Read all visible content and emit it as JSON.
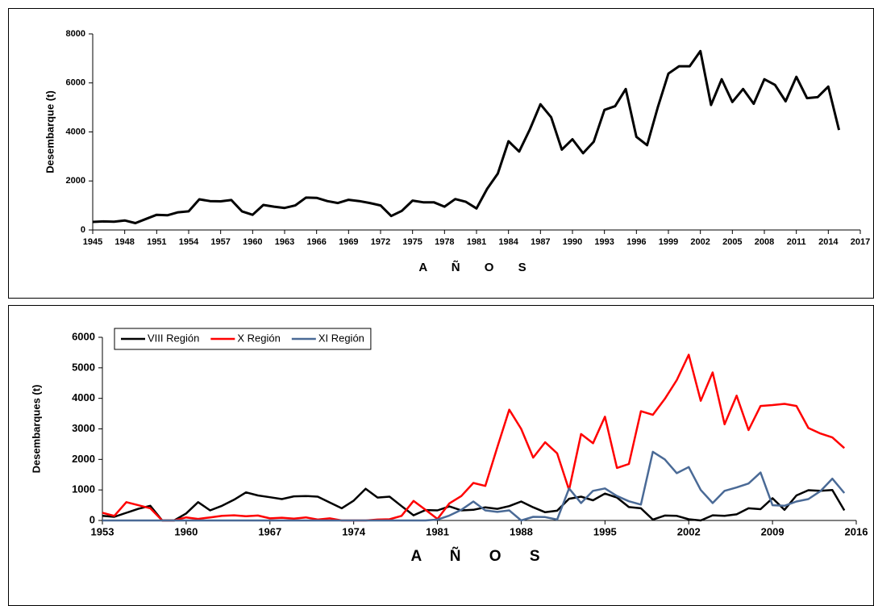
{
  "chart_data": [
    {
      "type": "line",
      "y_label": "Desembarque (t)",
      "x_label": "A Ñ O S",
      "x": [
        1945,
        1946,
        1947,
        1948,
        1949,
        1950,
        1951,
        1952,
        1953,
        1954,
        1955,
        1956,
        1957,
        1958,
        1959,
        1960,
        1961,
        1962,
        1963,
        1964,
        1965,
        1966,
        1967,
        1968,
        1969,
        1970,
        1971,
        1972,
        1973,
        1974,
        1975,
        1976,
        1977,
        1978,
        1979,
        1980,
        1981,
        1982,
        1983,
        1984,
        1985,
        1986,
        1987,
        1988,
        1989,
        1990,
        1991,
        1992,
        1993,
        1994,
        1995,
        1996,
        1997,
        1998,
        1999,
        2000,
        2001,
        2002,
        2003,
        2004,
        2005,
        2006,
        2007,
        2008,
        2009,
        2010,
        2011,
        2012,
        2013,
        2014,
        2015
      ],
      "values": [
        330,
        350,
        340,
        390,
        280,
        450,
        620,
        600,
        720,
        760,
        1250,
        1180,
        1170,
        1220,
        760,
        620,
        1020,
        950,
        900,
        1000,
        1320,
        1310,
        1180,
        1100,
        1230,
        1180,
        1100,
        1000,
        570,
        780,
        1200,
        1130,
        1130,
        950,
        1260,
        1150,
        880,
        1680,
        2300,
        3620,
        3200,
        4100,
        5130,
        4600,
        3280,
        3700,
        3130,
        3600,
        4900,
        5050,
        5750,
        3800,
        3460,
        5000,
        6380,
        6680,
        6680,
        7300,
        5100,
        6150,
        5220,
        5750,
        5150,
        6150,
        5920,
        5250,
        6250,
        5380,
        5420,
        5850,
        4080
      ],
      "color": "#000000",
      "xlim": [
        1945,
        2017
      ],
      "xticks": [
        1945,
        1948,
        1951,
        1954,
        1957,
        1960,
        1963,
        1966,
        1969,
        1972,
        1975,
        1978,
        1981,
        1984,
        1987,
        1990,
        1993,
        1996,
        1999,
        2002,
        2005,
        2008,
        2011,
        2014,
        2017
      ],
      "ylim": [
        0,
        8000
      ],
      "yticks": [
        0,
        2000,
        4000,
        6000,
        8000
      ],
      "grid": false
    },
    {
      "type": "line",
      "y_label": "Desembarques (t)",
      "x_label": "A Ñ O S",
      "x": [
        1953,
        1954,
        1955,
        1956,
        1957,
        1958,
        1959,
        1960,
        1961,
        1962,
        1963,
        1964,
        1965,
        1966,
        1967,
        1968,
        1969,
        1970,
        1971,
        1972,
        1973,
        1974,
        1975,
        1976,
        1977,
        1978,
        1979,
        1980,
        1981,
        1982,
        1983,
        1984,
        1985,
        1986,
        1987,
        1988,
        1989,
        1990,
        1991,
        1992,
        1993,
        1994,
        1995,
        1996,
        1997,
        1998,
        1999,
        2000,
        2001,
        2002,
        2003,
        2004,
        2005,
        2006,
        2007,
        2008,
        2009,
        2010,
        2011,
        2012,
        2013,
        2014,
        2015
      ],
      "series": [
        {
          "name": "VIII Región",
          "color": "#000000",
          "values": [
            150,
            120,
            250,
            380,
            480,
            0,
            0,
            230,
            600,
            330,
            480,
            680,
            920,
            820,
            760,
            700,
            790,
            800,
            780,
            590,
            400,
            650,
            1040,
            750,
            780,
            470,
            170,
            340,
            330,
            460,
            330,
            350,
            430,
            380,
            470,
            620,
            430,
            270,
            320,
            710,
            780,
            660,
            880,
            750,
            440,
            400,
            30,
            160,
            150,
            40,
            0,
            170,
            150,
            200,
            400,
            370,
            730,
            350,
            820,
            990,
            970,
            1000,
            330
          ]
        },
        {
          "name": "X Región",
          "color": "#ff0000",
          "values": [
            250,
            150,
            600,
            500,
            400,
            0,
            0,
            100,
            50,
            100,
            150,
            170,
            140,
            160,
            70,
            90,
            60,
            100,
            30,
            70,
            0,
            0,
            0,
            30,
            40,
            150,
            640,
            350,
            50,
            560,
            800,
            1230,
            1130,
            2400,
            3630,
            3000,
            2060,
            2560,
            2200,
            1000,
            2830,
            2530,
            3400,
            1720,
            1850,
            3580,
            3460,
            3980,
            4600,
            5430,
            3920,
            4850,
            3150,
            4090,
            2960,
            3750,
            3780,
            3820,
            3750,
            3030,
            2850,
            2720,
            2370
          ]
        },
        {
          "name": "XI Región",
          "color": "#4a6a96",
          "values": [
            0,
            0,
            0,
            0,
            0,
            0,
            0,
            0,
            0,
            0,
            0,
            0,
            0,
            0,
            0,
            0,
            0,
            0,
            0,
            0,
            0,
            0,
            0,
            0,
            0,
            0,
            0,
            0,
            30,
            160,
            350,
            620,
            330,
            280,
            330,
            0,
            120,
            110,
            30,
            1050,
            570,
            970,
            1050,
            800,
            630,
            520,
            2250,
            2000,
            1550,
            1750,
            1000,
            570,
            970,
            1080,
            1210,
            1570,
            500,
            480,
            620,
            700,
            960,
            1370,
            900
          ]
        }
      ],
      "xlim": [
        1953,
        2016
      ],
      "xticks": [
        1953,
        1960,
        1967,
        1974,
        1981,
        1988,
        1995,
        2002,
        2009,
        2016
      ],
      "ylim": [
        0,
        6000
      ],
      "yticks": [
        0,
        1000,
        2000,
        3000,
        4000,
        5000,
        6000
      ],
      "legend": "upper left",
      "grid": false
    }
  ]
}
